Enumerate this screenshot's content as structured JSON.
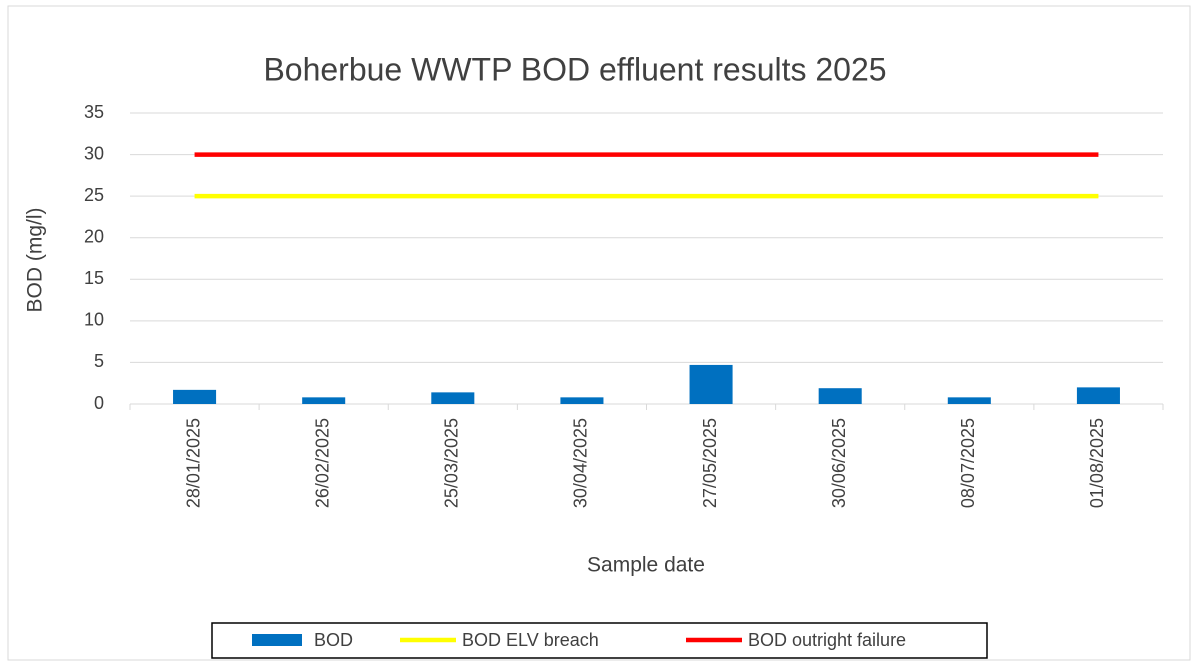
{
  "chart_data": {
    "type": "bar",
    "title": "Boherbue WWTP BOD effluent results 2025",
    "xlabel": "Sample date",
    "ylabel": "BOD (mg/l)",
    "categories": [
      "28/01/2025",
      "26/02/2025",
      "25/03/2025",
      "30/04/2025",
      "27/05/2025",
      "30/06/2025",
      "08/07/2025",
      "01/08/2025"
    ],
    "series": [
      {
        "name": "BOD",
        "type": "bar",
        "color": "#0070c0",
        "values": [
          1.7,
          0.8,
          1.4,
          0.8,
          4.7,
          1.9,
          0.8,
          2.0
        ]
      },
      {
        "name": "BOD ELV breach",
        "type": "line",
        "color": "#ffff00",
        "values": [
          25,
          25,
          25,
          25,
          25,
          25,
          25,
          25
        ]
      },
      {
        "name": "BOD outright failure",
        "type": "line",
        "color": "#ff0000",
        "values": [
          30,
          30,
          30,
          30,
          30,
          30,
          30,
          30
        ]
      }
    ],
    "ylim": [
      0,
      35
    ],
    "yticks": [
      0,
      5,
      10,
      15,
      20,
      25,
      30,
      35
    ],
    "grid": true,
    "legend": "bottom"
  }
}
